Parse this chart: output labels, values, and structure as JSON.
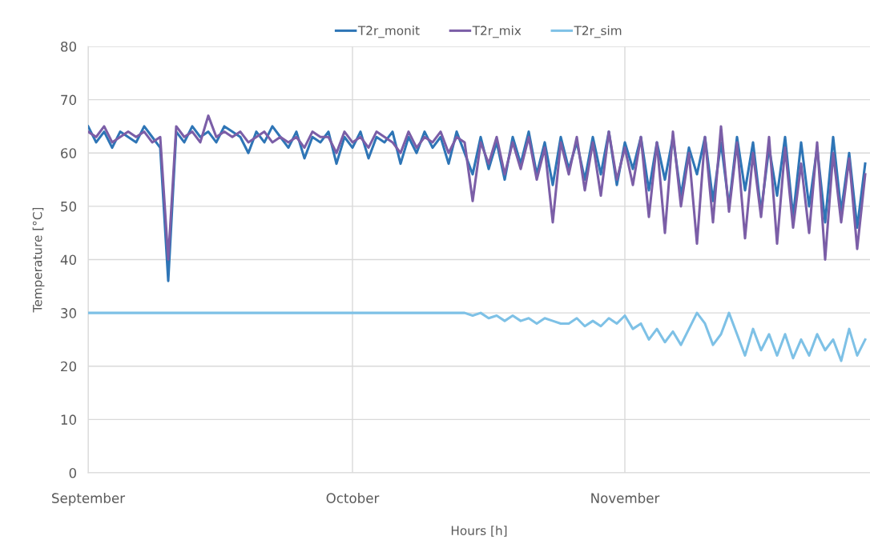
{
  "chart_data": {
    "type": "line",
    "xlabel": "Hours [h]",
    "ylabel": "Temperature [°C]",
    "categories": [
      "September",
      null,
      null,
      null,
      null,
      null,
      null,
      null,
      null,
      null,
      null,
      null,
      null,
      null,
      null,
      null,
      null,
      null,
      null,
      null,
      null,
      null,
      null,
      null,
      null,
      null,
      null,
      null,
      null,
      null,
      null,
      null,
      null,
      "October",
      null,
      null,
      null,
      null,
      null,
      null,
      null,
      null,
      null,
      null,
      null,
      null,
      null,
      null,
      null,
      null,
      null,
      null,
      null,
      null,
      null,
      null,
      null,
      null,
      null,
      null,
      null,
      null,
      null,
      null,
      null,
      null,
      null,
      "November",
      null,
      null,
      null,
      null,
      null,
      null,
      null,
      null,
      null,
      null,
      null,
      null,
      null,
      null,
      null,
      null,
      null,
      null,
      null,
      null,
      null,
      null,
      null,
      null,
      null,
      null,
      null,
      null,
      null,
      null
    ],
    "series": [
      {
        "name": "T2r_monit",
        "color": "#2e75b6",
        "values": [
          65,
          62,
          64,
          61,
          64,
          63,
          62,
          65,
          63,
          61,
          36,
          64,
          62,
          65,
          63,
          64,
          62,
          65,
          64,
          63,
          60,
          64,
          62,
          65,
          63,
          61,
          64,
          59,
          63,
          62,
          64,
          58,
          63,
          61,
          64,
          59,
          63,
          62,
          64,
          58,
          63,
          60,
          64,
          61,
          63,
          58,
          64,
          60,
          56,
          63,
          57,
          62,
          55,
          63,
          58,
          64,
          56,
          62,
          54,
          63,
          57,
          62,
          55,
          63,
          56,
          64,
          54,
          62,
          57,
          63,
          53,
          62,
          55,
          63,
          52,
          61,
          56,
          63,
          51,
          62,
          50,
          63,
          53,
          62,
          49,
          61,
          52,
          63,
          48,
          62,
          50,
          61,
          47,
          63,
          49,
          60,
          46,
          58
        ]
      },
      {
        "name": "T2r_mix",
        "color": "#7b5ea7",
        "values": [
          64,
          63,
          65,
          62,
          63,
          64,
          63,
          64,
          62,
          63,
          40,
          65,
          63,
          64,
          62,
          67,
          63,
          64,
          63,
          64,
          62,
          63,
          64,
          62,
          63,
          62,
          63,
          61,
          64,
          63,
          63,
          60,
          64,
          62,
          63,
          61,
          64,
          63,
          62,
          60,
          64,
          61,
          63,
          62,
          64,
          60,
          63,
          62,
          51,
          62,
          58,
          63,
          56,
          62,
          57,
          63,
          55,
          61,
          47,
          62,
          56,
          63,
          53,
          62,
          52,
          64,
          55,
          61,
          54,
          63,
          48,
          62,
          45,
          64,
          50,
          60,
          43,
          63,
          47,
          65,
          49,
          62,
          44,
          60,
          48,
          63,
          43,
          61,
          46,
          58,
          45,
          62,
          40,
          60,
          47,
          59,
          42,
          56
        ]
      },
      {
        "name": "T2r_sim",
        "color": "#7ec1e6",
        "values": [
          30,
          30,
          30,
          30,
          30,
          30,
          30,
          30,
          30,
          30,
          30,
          30,
          30,
          30,
          30,
          30,
          30,
          30,
          30,
          30,
          30,
          30,
          30,
          30,
          30,
          30,
          30,
          30,
          30,
          30,
          30,
          30,
          30,
          30,
          30,
          30,
          30,
          30,
          30,
          30,
          30,
          30,
          30,
          30,
          30,
          30,
          30,
          30,
          29.5,
          30,
          29,
          29.5,
          28.5,
          29.5,
          28.5,
          29,
          28,
          29,
          28.5,
          28,
          28,
          29,
          27.5,
          28.5,
          27.5,
          29,
          28,
          29.5,
          27,
          28,
          25,
          27,
          24.5,
          26.5,
          24,
          27,
          30,
          28,
          24,
          26,
          30,
          26,
          22,
          27,
          23,
          26,
          22,
          26,
          21.5,
          25,
          22,
          26,
          23,
          25,
          21,
          27,
          22,
          25
        ]
      }
    ],
    "ylim": [
      0,
      80
    ],
    "yticks": [
      0,
      10,
      20,
      30,
      40,
      50,
      60,
      70,
      80
    ],
    "grid": true,
    "legend": "top",
    "marker": "none",
    "line_style": "solid"
  }
}
